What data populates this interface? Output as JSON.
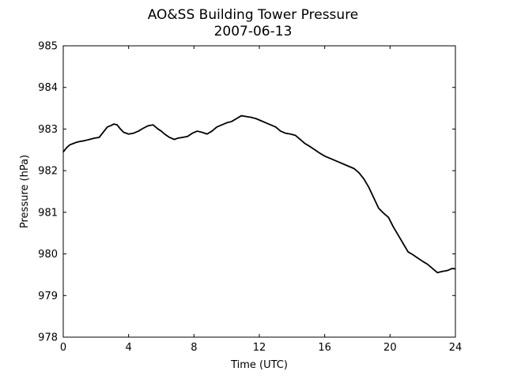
{
  "chart_data": {
    "type": "line",
    "title": "AO&SS Building Tower Pressure",
    "subtitle": "2007-06-13",
    "xlabel": "Time (UTC)",
    "ylabel": "Pressure (hPa)",
    "xlim": [
      0,
      24
    ],
    "ylim": [
      978,
      985
    ],
    "xticks": [
      0,
      4,
      8,
      12,
      16,
      20,
      24
    ],
    "yticks": [
      978,
      979,
      980,
      981,
      982,
      983,
      984,
      985
    ],
    "grid": false,
    "line_color": "#000000",
    "series": [
      {
        "x": [
          0,
          0.2,
          0.4,
          0.6,
          0.8,
          1.0,
          1.3,
          1.6,
          1.9,
          2.2,
          2.5,
          2.7,
          2.9,
          3.1,
          3.3,
          3.5,
          3.7,
          4.0,
          4.3,
          4.6,
          4.9,
          5.2,
          5.5,
          5.8,
          6.0,
          6.2,
          6.5,
          6.8,
          7.0,
          7.3,
          7.6,
          7.9,
          8.2,
          8.5,
          8.8,
          9.1,
          9.4,
          9.7,
          10.0,
          10.3,
          10.6,
          10.9,
          11.2,
          11.5,
          11.8,
          12.1,
          12.4,
          12.7,
          13.0,
          13.3,
          13.6,
          13.9,
          14.2,
          14.5,
          14.8,
          15.1,
          15.4,
          15.7,
          16.0,
          16.3,
          16.6,
          16.9,
          17.2,
          17.5,
          17.8,
          18.1,
          18.4,
          18.7,
          19.0,
          19.3,
          19.6,
          19.9,
          20.2,
          20.5,
          20.8,
          21.1,
          21.4,
          21.7,
          22.0,
          22.3,
          22.6,
          22.9,
          23.2,
          23.5,
          23.8,
          24.0
        ],
        "y": [
          982.45,
          982.55,
          982.62,
          982.65,
          982.68,
          982.7,
          982.72,
          982.75,
          982.78,
          982.8,
          982.95,
          983.05,
          983.08,
          983.12,
          983.1,
          983.0,
          982.92,
          982.88,
          982.9,
          982.95,
          983.02,
          983.08,
          983.1,
          983.0,
          982.95,
          982.88,
          982.8,
          982.75,
          982.78,
          982.8,
          982.82,
          982.9,
          982.95,
          982.92,
          982.88,
          982.95,
          983.05,
          983.1,
          983.15,
          983.18,
          983.25,
          983.32,
          983.3,
          983.28,
          983.25,
          983.2,
          983.15,
          983.1,
          983.05,
          982.95,
          982.9,
          982.88,
          982.85,
          982.75,
          982.65,
          982.58,
          982.5,
          982.42,
          982.35,
          982.3,
          982.25,
          982.2,
          982.15,
          982.1,
          982.05,
          981.95,
          981.8,
          981.6,
          981.35,
          981.1,
          980.98,
          980.88,
          980.65,
          980.45,
          980.25,
          980.05,
          979.98,
          979.9,
          979.82,
          979.75,
          979.65,
          979.55,
          979.58,
          979.6,
          979.65,
          979.64
        ]
      }
    ]
  }
}
